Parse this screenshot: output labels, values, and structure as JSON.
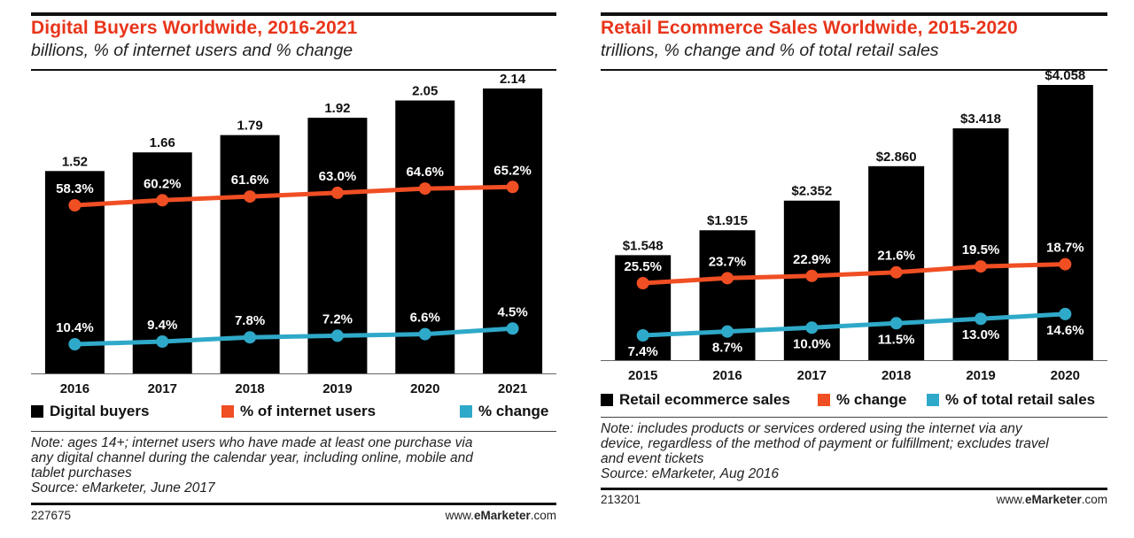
{
  "left": {
    "title": "Digital Buyers Worldwide, 2016-2021",
    "subtitle": "billions, % of internet users and % change",
    "legend": [
      "Digital buyers",
      "% of internet users",
      "% change"
    ],
    "note_lines": [
      "Note: ages 14+; internet users who have made at least one purchase via",
      "any digital channel during the calendar year, including online, mobile and",
      "tablet purchases",
      "Source: eMarketer, June 2017"
    ],
    "footer_id": "227675",
    "footer_site_pre": "www.",
    "footer_site_brand": "eMarketer",
    "footer_site_post": ".com"
  },
  "right": {
    "title": "Retail Ecommerce Sales Worldwide, 2015-2020",
    "subtitle": "trillions, % change and % of total retail sales",
    "legend": [
      "Retail ecommerce sales",
      "% change",
      "% of total retail sales"
    ],
    "note_lines": [
      "Note: includes products or services ordered using the internet via any",
      "device, regardless of the method of payment or fulfillment; excludes travel",
      "and event tickets",
      "Source: eMarketer, Aug 2016"
    ],
    "footer_id": "213201",
    "footer_site_pre": "www.",
    "footer_site_brand": "eMarketer",
    "footer_site_post": ".com"
  },
  "colors": {
    "bar": "#000000",
    "orange": "#f04e23",
    "blue": "#2fa9c9",
    "title": "#e8351b"
  },
  "chart_data": [
    {
      "type": "bar",
      "title": "Digital Buyers Worldwide, 2016-2021",
      "subtitle": "billions, % of internet users and % change",
      "categories": [
        "2016",
        "2017",
        "2018",
        "2019",
        "2020",
        "2021"
      ],
      "series": [
        {
          "name": "Digital buyers",
          "type": "bar",
          "values": [
            1.52,
            1.66,
            1.79,
            1.92,
            2.05,
            2.14
          ],
          "labels": [
            "1.52",
            "1.66",
            "1.79",
            "1.92",
            "2.05",
            "2.14"
          ]
        },
        {
          "name": "% of internet users",
          "type": "line",
          "values": [
            58.3,
            60.2,
            61.6,
            63.0,
            64.6,
            65.2
          ],
          "labels": [
            "58.3%",
            "60.2%",
            "61.6%",
            "63.0%",
            "64.6%",
            "65.2%"
          ]
        },
        {
          "name": "% change",
          "type": "line",
          "values": [
            10.4,
            9.4,
            7.8,
            7.2,
            6.6,
            4.5
          ],
          "labels": [
            "10.4%",
            "9.4%",
            "7.8%",
            "7.2%",
            "6.6%",
            "4.5%"
          ]
        }
      ],
      "legend_position": "bottom",
      "grid": false
    },
    {
      "type": "bar",
      "title": "Retail Ecommerce Sales Worldwide, 2015-2020",
      "subtitle": "trillions, % change and % of total retail sales",
      "categories": [
        "2015",
        "2016",
        "2017",
        "2018",
        "2019",
        "2020"
      ],
      "series": [
        {
          "name": "Retail ecommerce sales",
          "type": "bar",
          "values": [
            1.548,
            1.915,
            2.352,
            2.86,
            3.418,
            4.058
          ],
          "labels": [
            "$1.548",
            "$1.915",
            "$2.352",
            "$2.860",
            "$3.418",
            "$4.058"
          ]
        },
        {
          "name": "% change",
          "type": "line",
          "values": [
            25.5,
            23.7,
            22.9,
            21.6,
            19.5,
            18.7
          ],
          "labels": [
            "25.5%",
            "23.7%",
            "22.9%",
            "21.6%",
            "19.5%",
            "18.7%"
          ]
        },
        {
          "name": "% of total retail sales",
          "type": "line",
          "values": [
            7.4,
            8.7,
            10.0,
            11.5,
            13.0,
            14.6
          ],
          "labels": [
            "7.4%",
            "8.7%",
            "10.0%",
            "11.5%",
            "13.0%",
            "14.6%"
          ]
        }
      ],
      "legend_position": "bottom",
      "grid": false
    }
  ]
}
